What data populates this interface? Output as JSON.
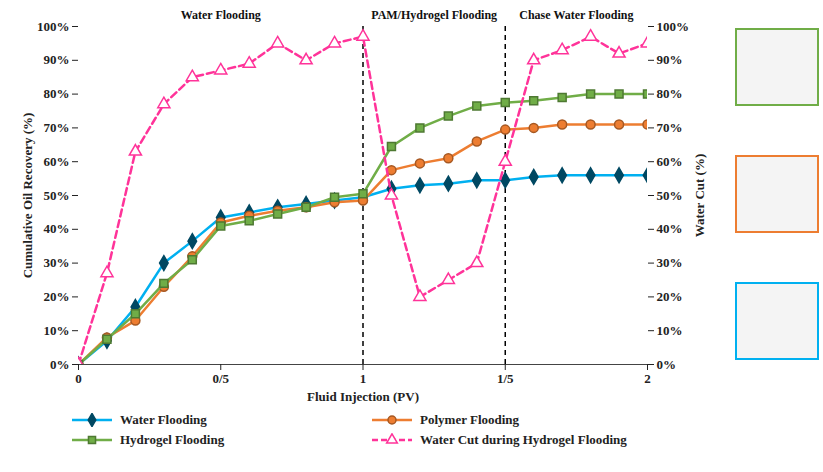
{
  "chart_data": {
    "type": "line",
    "x_label": "Fluid Injection (PV)",
    "y_label": "Cumulative Oil Recovery (%)",
    "y2_label": "Water Cut (%)",
    "x": [
      0,
      0.1,
      0.2,
      0.3,
      0.4,
      0.5,
      0.6,
      0.7,
      0.8,
      0.9,
      1.0,
      1.1,
      1.2,
      1.3,
      1.4,
      1.5,
      1.6,
      1.7,
      1.8,
      1.9,
      2.0
    ],
    "xlim": [
      0,
      2
    ],
    "xticks": [
      0,
      {
        "value": 0.5,
        "label": "0/5"
      },
      1,
      {
        "value": 1.5,
        "label": "1/5"
      },
      2
    ],
    "ylim": [
      0,
      100
    ],
    "yticks": [
      {
        "value": 0,
        "label": "0%"
      },
      {
        "value": 10,
        "label": "10%"
      },
      {
        "value": 20,
        "label": "20%"
      },
      {
        "value": 30,
        "label": "30%"
      },
      {
        "value": 40,
        "label": "40%"
      },
      {
        "value": 50,
        "label": "50%"
      },
      {
        "value": 60,
        "label": "60%"
      },
      {
        "value": 70,
        "label": "70%"
      },
      {
        "value": 80,
        "label": "80%"
      },
      {
        "value": 90,
        "label": "90%"
      },
      {
        "value": 100,
        "label": "100%"
      }
    ],
    "y2lim": [
      0,
      100
    ],
    "y2ticks": [
      {
        "value": 0,
        "label": "0%"
      },
      {
        "value": 10,
        "label": "10%"
      },
      {
        "value": 20,
        "label": "20%"
      },
      {
        "value": 30,
        "label": "30%"
      },
      {
        "value": 40,
        "label": "40%"
      },
      {
        "value": 50,
        "label": "50%"
      },
      {
        "value": 60,
        "label": "60%"
      },
      {
        "value": 70,
        "label": "70%"
      },
      {
        "value": 80,
        "label": "80%"
      },
      {
        "value": 90,
        "label": "90%"
      },
      {
        "value": 100,
        "label": "100%"
      }
    ],
    "phases": [
      {
        "label": "Water Flooding",
        "start": 0,
        "end": 1
      },
      {
        "label": "PAM/Hydrogel Flooding",
        "start": 1,
        "end": 1.5
      },
      {
        "label": "Chase Water Flooding",
        "start": 1.5,
        "end": 2
      }
    ],
    "series": [
      {
        "name": "Water Flooding",
        "color": "#00b0f0",
        "marker": "diamond",
        "line_style": "solid",
        "values": [
          0,
          7,
          17,
          30,
          36.5,
          43.5,
          45,
          46.5,
          47.5,
          48.5,
          49.5,
          52,
          53,
          53.5,
          54.5,
          54.5,
          55.5,
          56,
          56,
          56,
          56
        ]
      },
      {
        "name": "Polymer Flooding",
        "color": "#ed7d31",
        "marker": "circle",
        "line_style": "solid",
        "values": [
          0,
          8,
          13,
          23,
          32,
          42,
          44,
          45.5,
          46.5,
          48,
          48.5,
          57.5,
          59.5,
          61,
          66,
          69.5,
          70,
          71,
          71,
          71,
          71
        ]
      },
      {
        "name": "Hydrogel Flooding",
        "color": "#70ad47",
        "marker": "square",
        "line_style": "solid",
        "values": [
          0,
          7.5,
          15,
          24,
          31,
          41,
          42.5,
          44.5,
          46.5,
          49.5,
          50.5,
          64.5,
          70,
          73.5,
          76.5,
          77.5,
          78,
          79,
          80,
          80,
          80
        ]
      },
      {
        "name": "Water Cut during Hydrogel Flooding",
        "color": "#ff3399",
        "marker": "triangle",
        "line_style": "dashed",
        "axis": "y2",
        "values": [
          0,
          27,
          63,
          77,
          85,
          87,
          89,
          95,
          90,
          95,
          97,
          50,
          20,
          25,
          30,
          60,
          90,
          93,
          97,
          92,
          95
        ]
      }
    ],
    "legend": "bottom",
    "grid": false
  }
}
